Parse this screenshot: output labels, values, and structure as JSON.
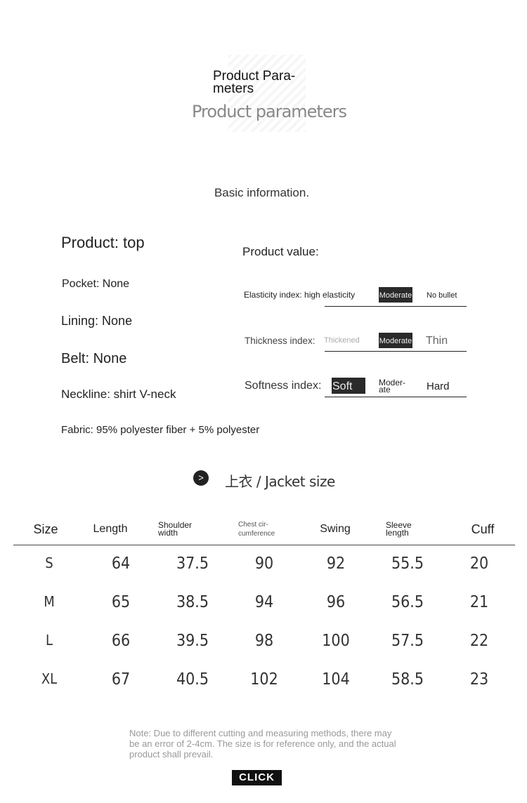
{
  "header": {
    "title_en": "Product Para-\nmeters",
    "title_sub": "Product parameters"
  },
  "basic": {
    "heading": "Basic information."
  },
  "left": {
    "product": "Product: top",
    "pocket": "Pocket: None",
    "lining": "Lining: None",
    "belt": "Belt: None",
    "neckline": "Neckline: shirt V-neck",
    "fabric": "Fabric: 95% polyester fiber + 5% polyester"
  },
  "value": {
    "heading": "Product value:",
    "elasticity": {
      "label": "Elasticity index: high elasticity",
      "options": [
        "Moderate",
        "No bullet"
      ],
      "selected": "Moderate"
    },
    "thickness": {
      "label": "Thickness index:",
      "options": [
        "Thickened",
        "Moderate",
        "Thin"
      ],
      "selected": "Moderate"
    },
    "softness": {
      "label": "Softness index:",
      "options": [
        "Soft",
        "Moder-\nate",
        "Hard"
      ],
      "selected": "Soft"
    }
  },
  "size": {
    "title": "上衣 / Jacket size",
    "icon": "chevron-right-icon",
    "headers": [
      "Size",
      "Length",
      "Shoulder\nwidth",
      "Chest cir-\ncumference",
      "Swing",
      "Sleeve\nlength",
      "Cuff"
    ],
    "rows": [
      [
        "S",
        "64",
        "37.5",
        "90",
        "92",
        "55.5",
        "20"
      ],
      [
        "M",
        "65",
        "38.5",
        "94",
        "96",
        "56.5",
        "21"
      ],
      [
        "L",
        "66",
        "39.5",
        "98",
        "100",
        "57.5",
        "22"
      ],
      [
        "XL",
        "67",
        "40.5",
        "102",
        "104",
        "58.5",
        "23"
      ]
    ]
  },
  "note": "Note: Due to different cutting and measuring methods, there may be an error of 2-4cm. The size is for reference only, and the actual product shall prevail.",
  "click": "CLICK"
}
